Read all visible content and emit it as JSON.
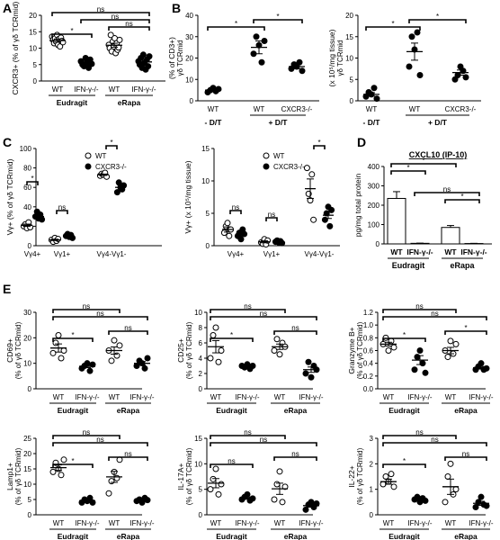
{
  "panel_letters": [
    "A",
    "B",
    "C",
    "D",
    "E"
  ],
  "annotation_marks": {
    "asterisk": "*",
    "ns": "n\ns"
  },
  "chart_data": [
    {
      "id": "A",
      "type": "scatter",
      "ylabel": "CXCR3+ (% of γδ TCRmid)",
      "ylim": [
        0,
        20
      ],
      "yticks": [
        0,
        5,
        10,
        15,
        20
      ],
      "categories": [
        "WT",
        "IFN-γ-/-",
        "WT",
        "IFN-γ-/-"
      ],
      "groups": [
        {
          "label": "Eudragit",
          "span": [
            0,
            1
          ]
        },
        {
          "label": "eRapa",
          "span": [
            2,
            3
          ]
        }
      ],
      "markers": [
        "open",
        "filled",
        "open",
        "filled"
      ],
      "values": [
        [
          13.5,
          12.5,
          11.5,
          13,
          12,
          14,
          11,
          12.8,
          10.5,
          13.2,
          12.2,
          11.8
        ],
        [
          6,
          5,
          4.5,
          7,
          5.5,
          4,
          6.5,
          5.2
        ],
        [
          11,
          10,
          14,
          9,
          12,
          10.5,
          13,
          8.5,
          11.5,
          9.5,
          10.2,
          12.5
        ],
        [
          6,
          5,
          7,
          4,
          8,
          5.5,
          3.5,
          6.5,
          4.5,
          7.5
        ]
      ],
      "means": [
        12.3,
        5.6,
        10.9,
        5.8
      ],
      "sems": [
        0.5,
        0.4,
        0.6,
        0.5
      ]
    },
    {
      "id": "B1",
      "type": "scatter",
      "ylabel": "(% of CD3+)",
      "ylabel2": "γδ TCRmid",
      "ylim": [
        0,
        40
      ],
      "yticks": [
        0,
        10,
        20,
        30,
        40
      ],
      "categories": [
        "WT",
        "WT",
        "CXCR3-/-"
      ],
      "groups": [
        {
          "label": "- D/T",
          "span": [
            0,
            0
          ]
        },
        {
          "label": "+ D/T",
          "span": [
            1,
            2
          ]
        }
      ],
      "markers": [
        "filled",
        "filled",
        "filled"
      ],
      "values": [
        [
          4,
          5,
          6,
          4.5,
          5.5
        ],
        [
          22,
          30,
          26,
          18,
          28
        ],
        [
          15,
          17,
          16,
          18,
          14
        ]
      ],
      "means": [
        5,
        25,
        16
      ],
      "sems": [
        0.4,
        3,
        1
      ]
    },
    {
      "id": "B2",
      "type": "scatter",
      "ylabel": "(x 10⁵/mg tissue)",
      "ylabel2": "γδ TCRmid",
      "ylim": [
        0,
        20
      ],
      "yticks": [
        0,
        5,
        10,
        15,
        20
      ],
      "categories": [
        "WT",
        "WT",
        "CXCR3-/-"
      ],
      "groups": [
        {
          "label": "- D/T",
          "span": [
            0,
            0
          ]
        },
        {
          "label": "+ D/T",
          "span": [
            1,
            2
          ]
        }
      ],
      "markers": [
        "filled",
        "filled",
        "filled"
      ],
      "values": [
        [
          1,
          2,
          1.5,
          3,
          0.5
        ],
        [
          8,
          15,
          12,
          16,
          6
        ],
        [
          5,
          6,
          8,
          7,
          5.5
        ]
      ],
      "means": [
        1.5,
        11.5,
        6.6
      ],
      "sems": [
        0.4,
        2,
        0.6
      ]
    },
    {
      "id": "C1",
      "type": "scatter",
      "ylabel": "Vγ+ (% of γδ TCRmid)",
      "ylim": [
        0,
        100
      ],
      "yticks": [
        0,
        20,
        40,
        60,
        80,
        100
      ],
      "categories": [
        "Vγ4+",
        "Vγ1+",
        "Vγ4-Vγ1-"
      ],
      "legend": [
        "WT",
        "CXCR3-/-"
      ],
      "series_markers": [
        "open",
        "filled"
      ],
      "values": [
        [
          [
            20,
            22,
            18,
            24,
            19
          ],
          [
            30,
            35,
            28,
            32,
            27
          ]
        ],
        [
          [
            6,
            4,
            8,
            5,
            7
          ],
          [
            10,
            12,
            9,
            11,
            8
          ]
        ],
        [
          [
            72,
            74,
            73,
            75,
            71
          ],
          [
            55,
            65,
            60,
            58,
            62
          ]
        ]
      ],
      "means": [
        [
          21,
          30
        ],
        [
          6,
          10
        ],
        [
          73,
          60
        ]
      ],
      "sems": [
        [
          1.2,
          1.8
        ],
        [
          0.7,
          0.6
        ],
        [
          0.7,
          2.5
        ]
      ]
    },
    {
      "id": "C2",
      "type": "scatter",
      "ylabel": "Vγ+ (x 10⁵/mg tissue)",
      "ylim": [
        0,
        15
      ],
      "yticks": [
        0,
        5,
        10,
        15
      ],
      "categories": [
        "Vγ4+",
        "Vγ1+",
        "Vγ4-Vγ1-"
      ],
      "legend": [
        "WT",
        "CXCR3-/-"
      ],
      "series_markers": [
        "open",
        "filled"
      ],
      "values": [
        [
          [
            2,
            3,
            3.5,
            1.5,
            2.5
          ],
          [
            1.5,
            2,
            1,
            2.5,
            1.8
          ]
        ],
        [
          [
            0.5,
            0.3,
            1,
            0.2,
            0.8
          ],
          [
            0.6,
            0.8,
            0.5,
            0.7,
            0.4
          ]
        ],
        [
          [
            12,
            8,
            7,
            11,
            4
          ],
          [
            4,
            5,
            6,
            3,
            5.5
          ]
        ]
      ],
      "means": [
        [
          2.5,
          1.8
        ],
        [
          0.6,
          0.6
        ],
        [
          8.8,
          4.7
        ]
      ],
      "sems": [
        [
          0.4,
          0.3
        ],
        [
          0.15,
          0.1
        ],
        [
          1.5,
          0.5
        ]
      ]
    },
    {
      "id": "D",
      "type": "bar",
      "title": "CXCL10 (IP-10)",
      "ylabel": "pg/mg total protein",
      "ylim": [
        0,
        400
      ],
      "yticks": [
        0,
        100,
        200,
        300,
        400
      ],
      "categories": [
        "WT",
        "IFN-γ-/-",
        "WT",
        "IFN-γ-/-"
      ],
      "groups": [
        {
          "label": "Eudragit",
          "span": [
            0,
            1
          ]
        },
        {
          "label": "eRapa",
          "span": [
            2,
            3
          ]
        }
      ],
      "values": [
        235,
        3,
        85,
        2
      ],
      "errors": [
        35,
        1,
        10,
        1
      ]
    },
    {
      "id": "E1",
      "type": "scatter",
      "ylabel": "CD69+",
      "ylabel2": "(% of γδ TCRmid)",
      "ylim": [
        0,
        30
      ],
      "yticks": [
        0,
        10,
        20,
        30
      ],
      "categories": [
        "WT",
        "IFN-γ-/-",
        "WT",
        "IFN-γ-/-"
      ],
      "groups": [
        {
          "label": "Eudragit",
          "span": [
            0,
            1
          ]
        },
        {
          "label": "eRapa",
          "span": [
            2,
            3
          ]
        }
      ],
      "markers": [
        "open",
        "filled",
        "open",
        "filled"
      ],
      "values": [
        [
          14,
          18,
          21,
          12,
          15
        ],
        [
          8,
          9,
          10,
          7,
          9.5
        ],
        [
          15,
          11,
          19,
          13,
          17
        ],
        [
          9,
          11,
          10,
          8,
          12
        ]
      ],
      "means": [
        16,
        8.8,
        15,
        10
      ],
      "sems": [
        1.6,
        0.5,
        1.4,
        0.7
      ]
    },
    {
      "id": "E2",
      "type": "scatter",
      "ylabel": "CD25+",
      "ylabel2": "(% of γδ TCRmid)",
      "ylim": [
        0,
        10
      ],
      "yticks": [
        0,
        2,
        4,
        6,
        8,
        10
      ],
      "categories": [
        "WT",
        "IFN-γ-/-",
        "WT",
        "IFN-γ-/-"
      ],
      "groups": [
        {
          "label": "Eudragit",
          "span": [
            0,
            1
          ]
        },
        {
          "label": "eRapa",
          "span": [
            2,
            3
          ]
        }
      ],
      "markers": [
        "open",
        "filled",
        "open",
        "filled"
      ],
      "values": [
        [
          4,
          7,
          8,
          3.5,
          5
        ],
        [
          3,
          2.8,
          3.2,
          2.6,
          3
        ],
        [
          5,
          6.5,
          4.5,
          6,
          5.5
        ],
        [
          2,
          3.5,
          1.5,
          3,
          2.5
        ]
      ],
      "means": [
        5.5,
        2.9,
        5.5,
        2.5
      ],
      "sems": [
        0.8,
        0.1,
        0.35,
        0.35
      ]
    },
    {
      "id": "E3",
      "type": "scatter",
      "ylabel": "Granzyme B+",
      "ylabel2": "(% of γδ TCRmid)",
      "ylim": [
        0,
        1.2
      ],
      "yticks": [
        0,
        0.2,
        0.4,
        0.6,
        0.8,
        1.0,
        1.2
      ],
      "categories": [
        "WT",
        "IFN-γ-/-",
        "WT",
        "IFN-γ-/-"
      ],
      "groups": [
        {
          "label": "Eudragit",
          "span": [
            0,
            1
          ]
        },
        {
          "label": "eRapa",
          "span": [
            2,
            3
          ]
        }
      ],
      "markers": [
        "open",
        "filled",
        "open",
        "filled"
      ],
      "values": [
        [
          0.7,
          0.8,
          0.6,
          0.75,
          0.65
        ],
        [
          0.3,
          0.5,
          0.6,
          0.4,
          0.25
        ],
        [
          0.6,
          0.5,
          0.75,
          0.55,
          0.7
        ],
        [
          0.3,
          0.35,
          0.4,
          0.3,
          0.32
        ]
      ],
      "means": [
        0.7,
        0.45,
        0.6,
        0.33
      ],
      "sems": [
        0.03,
        0.07,
        0.05,
        0.02
      ]
    },
    {
      "id": "E4",
      "type": "scatter",
      "ylabel": "Lamp1+",
      "ylabel2": "(% of γδ TCRmid)",
      "ylim": [
        0,
        25
      ],
      "yticks": [
        0,
        5,
        10,
        15,
        20,
        25
      ],
      "categories": [
        "WT",
        "IFN-γ-/-",
        "WT",
        "IFN-γ-/-"
      ],
      "groups": [
        {
          "label": "Eudragit",
          "span": [
            0,
            1
          ]
        },
        {
          "label": "eRapa",
          "span": [
            2,
            3
          ]
        }
      ],
      "markers": [
        "open",
        "filled",
        "open",
        "filled"
      ],
      "values": [
        [
          14,
          17,
          15,
          13,
          18
        ],
        [
          4,
          5,
          4.5,
          5.5,
          4
        ],
        [
          7,
          11,
          14,
          12,
          18
        ],
        [
          4.5,
          5,
          4,
          5.5,
          4.8
        ]
      ],
      "means": [
        15.4,
        4.6,
        12.4,
        4.8
      ],
      "sems": [
        0.9,
        0.3,
        1.8,
        0.25
      ]
    },
    {
      "id": "E5",
      "type": "scatter",
      "ylabel": "IL-17A+",
      "ylabel2": "(% of γδ TCRmid)",
      "ylim": [
        0,
        15
      ],
      "yticks": [
        0,
        5,
        10,
        15
      ],
      "categories": [
        "WT",
        "IFN-γ-/-",
        "WT",
        "IFN-γ-/-"
      ],
      "groups": [
        {
          "label": "Eudragit",
          "span": [
            0,
            1
          ]
        },
        {
          "label": "eRapa",
          "span": [
            2,
            3
          ]
        }
      ],
      "markers": [
        "open",
        "filled",
        "open",
        "filled"
      ],
      "values": [
        [
          5,
          7,
          9,
          4,
          6
        ],
        [
          3,
          3.5,
          4,
          2.8,
          3.2
        ],
        [
          3,
          6,
          8.5,
          2.5,
          5.5
        ],
        [
          1,
          2,
          2.5,
          1.5,
          2.2
        ]
      ],
      "means": [
        6.2,
        3.3,
        5.1,
        1.8
      ],
      "sems": [
        0.9,
        0.2,
        1.1,
        0.3
      ]
    },
    {
      "id": "E6",
      "type": "scatter",
      "ylabel": "IL-22+",
      "ylabel2": "(% of γδ TCRmid)",
      "ylim": [
        0,
        3
      ],
      "yticks": [
        0,
        1,
        2,
        3
      ],
      "categories": [
        "WT",
        "IFN-γ-/-",
        "WT",
        "IFN-γ-/-"
      ],
      "groups": [
        {
          "label": "Eudragit",
          "span": [
            0,
            1
          ]
        },
        {
          "label": "eRapa",
          "span": [
            2,
            3
          ]
        }
      ],
      "markers": [
        "open",
        "filled",
        "open",
        "filled"
      ],
      "values": [
        [
          1.2,
          1.5,
          1.3,
          1.6,
          1.1
        ],
        [
          0.6,
          0.7,
          0.5,
          0.65,
          0.55
        ],
        [
          0.5,
          1.5,
          2,
          0.8,
          1
        ],
        [
          0.3,
          0.5,
          0.7,
          0.4,
          0.35
        ]
      ],
      "means": [
        1.3,
        0.6,
        1.1,
        0.45
      ],
      "sems": [
        0.1,
        0.04,
        0.3,
        0.08
      ]
    }
  ]
}
